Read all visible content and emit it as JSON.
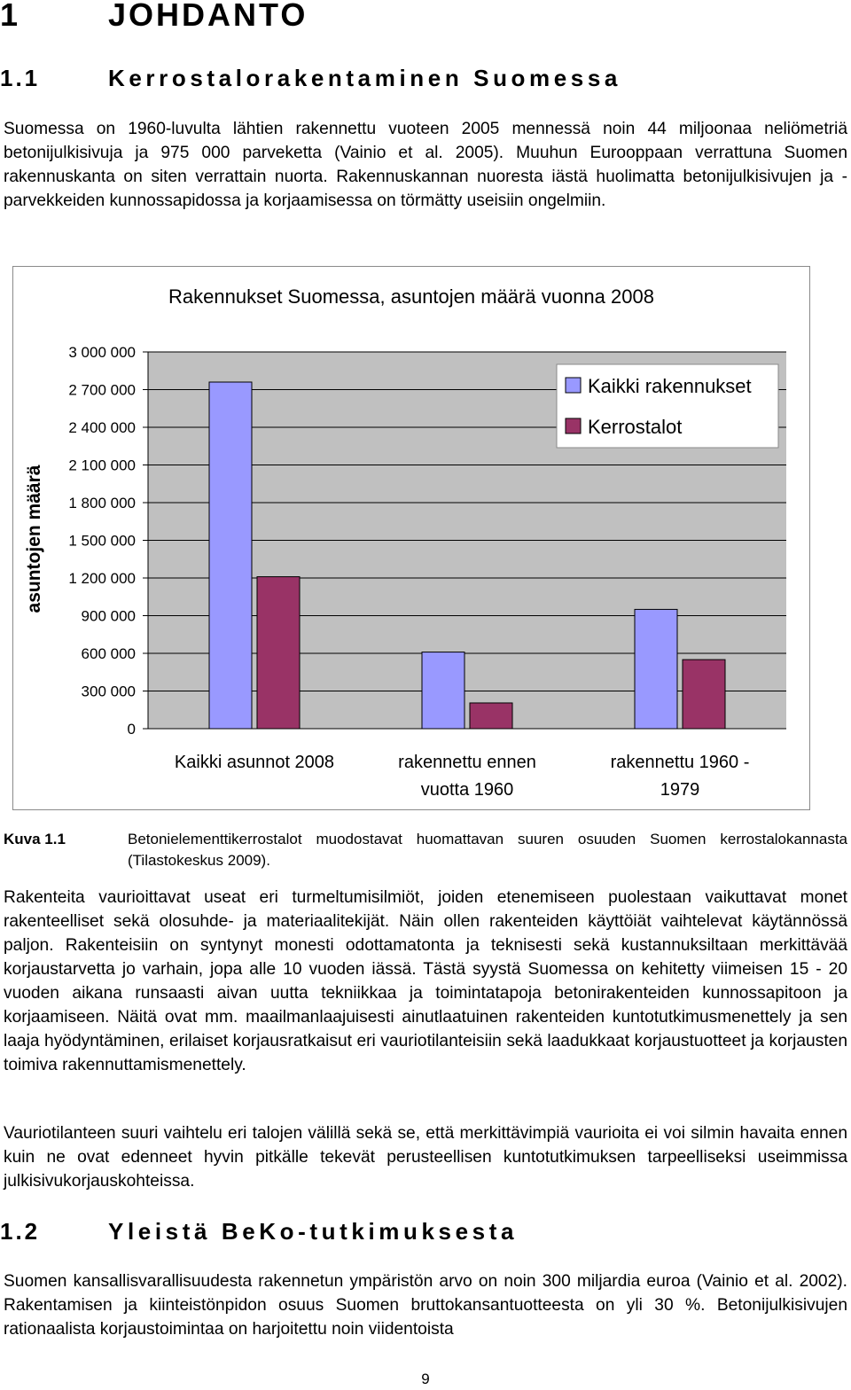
{
  "heading1": {
    "number": "1",
    "title": "JOHDANTO"
  },
  "section1": {
    "number": "1.1",
    "title": "Kerrostalorakentaminen Suomessa",
    "paragraph": "Suomessa on 1960-luvulta lähtien rakennettu vuoteen 2005 mennessä noin 44 miljoonaa neliömetriä betonijulkisivuja ja 975 000 parveketta (Vainio et al. 2005). Muuhun Eurooppaan verrattuna Suomen rakennuskanta on siten verrattain nuorta. Rakennuskannan nuoresta iästä huolimatta betonijulkisivujen ja -parvekkeiden kunnossapidossa ja korjaamisessa on törmätty useisiin ongelmiin."
  },
  "chart_data": {
    "type": "bar",
    "title": "Rakennukset Suomessa, asuntojen määrä vuonna 2008",
    "xlabel": "",
    "ylabel": "asuntojen määrä",
    "categories": [
      "Kaikki asunnot 2008",
      "rakennettu ennen vuotta 1960",
      "rakennettu 1960 - 1979"
    ],
    "category_lines": [
      [
        "Kaikki asunnot 2008"
      ],
      [
        "rakennettu ennen",
        "vuotta 1960"
      ],
      [
        "rakennettu 1960 -",
        "1979"
      ]
    ],
    "series": [
      {
        "name": "Kaikki rakennukset",
        "color": "#9999ff",
        "values": [
          2760000,
          610000,
          950000
        ]
      },
      {
        "name": "Kerrostalot",
        "color": "#993366",
        "values": [
          1210000,
          205000,
          550000
        ]
      }
    ],
    "ylim": [
      0,
      3000000
    ],
    "yticks": [
      0,
      300000,
      600000,
      900000,
      1200000,
      1500000,
      1800000,
      2100000,
      2400000,
      2700000,
      3000000
    ],
    "ytick_labels": [
      "0",
      "300 000",
      "600 000",
      "900 000",
      "1 200 000",
      "1 500 000",
      "1 800 000",
      "2 100 000",
      "2 400 000",
      "2 700 000",
      "3 000 000"
    ],
    "grid": true,
    "plot_background": "#c0c0c0",
    "legend_position": "top-right"
  },
  "caption": {
    "label": "Kuva 1.1",
    "text": "Betonielementtikerrostalot muodostavat huomattavan suuren osuuden Suomen kerrostalokannasta (Tilastokeskus 2009)."
  },
  "paragraph2": "Rakenteita vaurioittavat useat eri turmeltumisilmiöt, joiden etenemiseen puolestaan vaikuttavat monet rakenteelliset sekä olosuhde- ja materiaalitekijät. Näin ollen rakenteiden käyttöiät vaihtelevat käytännössä paljon. Rakenteisiin on syntynyt monesti odottamatonta ja teknisesti sekä kustannuksiltaan merkittävää korjaustarvetta jo varhain, jopa alle 10 vuoden iässä. Tästä syystä Suomessa on kehitetty viimeisen 15 - 20 vuoden aikana runsaasti aivan uutta tekniikkaa ja toimintatapoja betonirakenteiden kunnossapitoon ja korjaamiseen. Näitä ovat mm. maailmanlaajuisesti ainutlaatuinen rakenteiden kuntotutkimusmenettely ja sen laaja hyödyntäminen, erilaiset korjausratkaisut eri vauriotilanteisiin sekä laadukkaat korjaustuotteet ja korjausten toimiva rakennuttamismenettely.",
  "paragraph3": "Vauriotilanteen suuri vaihtelu eri talojen välillä sekä se, että merkittävimpiä vaurioita ei voi silmin havaita ennen kuin ne ovat edenneet hyvin pitkälle tekevät perusteellisen kuntotutkimuksen tarpeelliseksi useimmissa julkisivukorjauskohteissa.",
  "section2": {
    "number": "1.2",
    "title": "Yleistä BeKo-tutkimuksesta",
    "paragraph": "Suomen kansallisvarallisuudesta rakennetun ympäristön arvo on noin 300 miljardia euroa (Vainio et al. 2002). Rakentamisen ja kiinteistönpidon osuus Suomen bruttokansantuotteesta on yli 30 %. Betonijulkisivujen rationaalista korjaustoimintaa on harjoitettu noin viidentoista"
  },
  "page_number": "9"
}
